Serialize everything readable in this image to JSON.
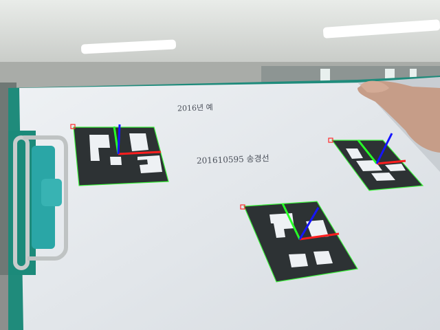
{
  "scene": {
    "handwriting": {
      "top": "2016년 예",
      "middle": "201610595 송경선"
    },
    "markers": [
      {
        "id": "marker-left"
      },
      {
        "id": "marker-right"
      },
      {
        "id": "marker-bottom"
      }
    ],
    "colors": {
      "paper": "#e4e8ec",
      "board_edge": "#1f8b7b",
      "clip": "#2aa6a6",
      "marker_black": "#2d3234",
      "outline": "#3cf03c",
      "axis_x": "#ff1e1e",
      "axis_y": "#27ff27",
      "axis_z": "#1515ff",
      "corner": "#ff2a2a"
    }
  }
}
